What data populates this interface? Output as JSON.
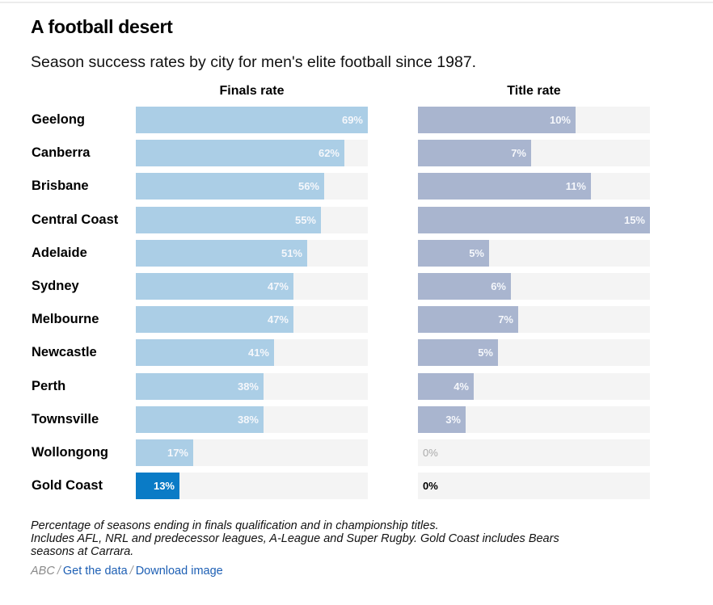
{
  "header": {
    "title": "A football desert",
    "subtitle": "Season success rates by city for men's elite football since 1987."
  },
  "chart_data": {
    "type": "bar",
    "orientation": "horizontal",
    "title": "A football desert",
    "subtitle": "Season success rates by city for men's elite football since 1987.",
    "categories": [
      "Geelong",
      "Canberra",
      "Brisbane",
      "Central Coast",
      "Adelaide",
      "Sydney",
      "Melbourne",
      "Newcastle",
      "Perth",
      "Townsville",
      "Wollongong",
      "Gold Coast"
    ],
    "highlight_category": "Gold Coast",
    "series": [
      {
        "name": "Finals rate",
        "color": "#abcee6",
        "highlight_color": "#0a7bc6",
        "xlim": [
          0,
          69
        ],
        "values": [
          69,
          62,
          56,
          55,
          51,
          47,
          47,
          41,
          38,
          38,
          17,
          13
        ],
        "labels": [
          "69%",
          "62%",
          "56%",
          "55%",
          "51%",
          "47%",
          "47%",
          "41%",
          "38%",
          "38%",
          "17%",
          "13%"
        ]
      },
      {
        "name": "Title rate",
        "color": "#a9b5cf",
        "xlim": [
          0,
          15
        ],
        "values": [
          10.2,
          7.3,
          11.2,
          15,
          4.6,
          6,
          6.5,
          5.2,
          3.6,
          3.1,
          0,
          0
        ],
        "labels": [
          "10%",
          "7%",
          "11%",
          "15%",
          "5%",
          "6%",
          "7%",
          "5%",
          "4%",
          "3%",
          "0%",
          "0%"
        ]
      }
    ],
    "track_color": "#f4f4f4",
    "xlabel": "",
    "ylabel": "",
    "grid": false,
    "legend": "none"
  },
  "footer": {
    "note_lines": [
      "Percentage of seasons ending in finals qualification and in championship titles.",
      "Includes AFL, NRL and predecessor leagues, A-League and Super Rugby. Gold Coast includes Bears",
      "seasons at Carrara."
    ],
    "source": "ABC",
    "separator": "/",
    "get_data_link": "Get the data",
    "download_link": "Download image"
  }
}
